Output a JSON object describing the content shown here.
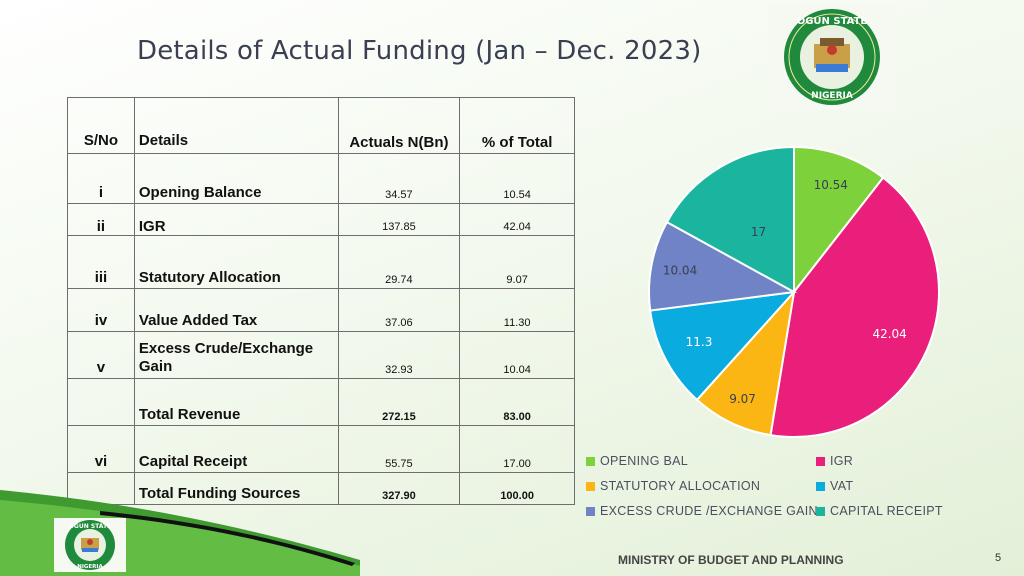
{
  "slide": {
    "title": "Details of Actual Funding (Jan – Dec. 2023)",
    "footer": "MINISTRY OF BUDGET AND PLANNING",
    "page_number": "5",
    "logo_text_top": "OGUN STATE",
    "logo_text_bottom": "NIGERIA"
  },
  "table": {
    "headers": [
      "S/No",
      "Details",
      "Actuals N(Bn)",
      "% of Total"
    ],
    "rows": [
      {
        "sn": "i",
        "details": "Opening Balance",
        "actual": "34.57",
        "pct": "10.54"
      },
      {
        "sn": "ii",
        "details": "IGR",
        "actual": "137.85",
        "pct": "42.04"
      },
      {
        "sn": "iii",
        "details": "Statutory Allocation",
        "actual": "29.74",
        "pct": "9.07"
      },
      {
        "sn": "iv",
        "details": "Value Added Tax",
        "actual": "37.06",
        "pct": "11.30"
      },
      {
        "sn": "v",
        "details": "Excess Crude/Exchange Gain",
        "actual": "32.93",
        "pct": "10.04"
      },
      {
        "sn": "",
        "details": "Total Revenue",
        "actual": "272.15",
        "pct": "83.00"
      },
      {
        "sn": "vi",
        "details": "Capital Receipt",
        "actual": "55.75",
        "pct": "17.00"
      },
      {
        "sn": "",
        "details": "Total Funding Sources",
        "actual": "327.90",
        "pct": "100.00"
      }
    ]
  },
  "chart_data": {
    "type": "pie",
    "labels": [
      "OPENING BAL",
      "IGR",
      "STATUTORY ALLOCATION",
      "VAT",
      "EXCESS CRUDE /EXCHANGE GAIN",
      "CAPITAL RECEIPT"
    ],
    "values": [
      10.54,
      42.04,
      9.07,
      11.3,
      10.04,
      17
    ],
    "data_labels": [
      "10.54",
      "42.04",
      "9.07",
      "11.3",
      "10.04",
      "17"
    ],
    "colors": [
      "#7dd13b",
      "#ea1e7b",
      "#fbb614",
      "#0aace0",
      "#6f83c6",
      "#1bb59f"
    ],
    "legend_position": "bottom"
  }
}
